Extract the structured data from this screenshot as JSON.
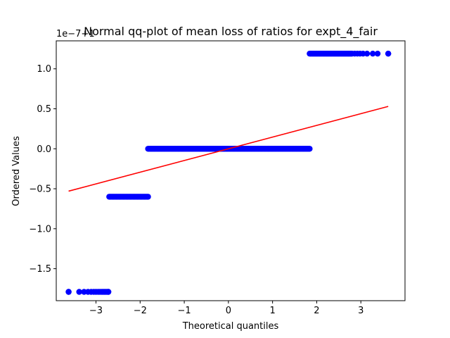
{
  "chart_data": {
    "type": "scatter",
    "title": "Normal qq-plot of mean loss of ratios for expt_4_fair",
    "xlabel": "Theoretical quantiles",
    "ylabel": "Ordered Values",
    "offset_text": "1e−7+1",
    "xlim": [
      -3.9,
      4.0
    ],
    "ylim": [
      -1.9,
      1.35
    ],
    "x_ticks": [
      -3,
      -2,
      -1,
      0,
      1,
      2,
      3
    ],
    "y_ticks": [
      -1.5,
      -1.0,
      -0.5,
      0.0,
      0.5,
      1.0
    ],
    "x_tick_labels": [
      "−3",
      "−2",
      "−1",
      "0",
      "1",
      "2",
      "3"
    ],
    "y_tick_labels": [
      "−1.5",
      "−1.0",
      "−0.5",
      "0.0",
      "0.5",
      "1.0"
    ],
    "grid": false,
    "series": [
      {
        "kind": "points",
        "color": "#0000ff",
        "segments": [
          {
            "x_from": -3.62,
            "x_to": -2.72,
            "y": -1.79,
            "points": [
              -3.62,
              -3.38,
              -3.27,
              -3.18,
              -3.11,
              -3.05,
              -3.0,
              -2.95,
              -2.91,
              -2.87,
              -2.84,
              -2.81,
              -2.78,
              -2.75,
              -2.72
            ]
          },
          {
            "x_from": -2.7,
            "x_to": -1.82,
            "y": -0.6
          },
          {
            "x_from": -1.82,
            "x_to": 1.84,
            "y": 0.0
          },
          {
            "x_from": 1.84,
            "x_to": 3.62,
            "y": 1.19,
            "points": [
              2.8,
              2.86,
              2.92,
              2.98,
              3.05,
              3.14,
              3.27,
              3.38,
              3.62
            ]
          }
        ]
      },
      {
        "kind": "fit-line",
        "color": "#ff0000",
        "x": [
          -3.62,
          3.62
        ],
        "y": [
          -0.53,
          0.53
        ]
      }
    ]
  }
}
